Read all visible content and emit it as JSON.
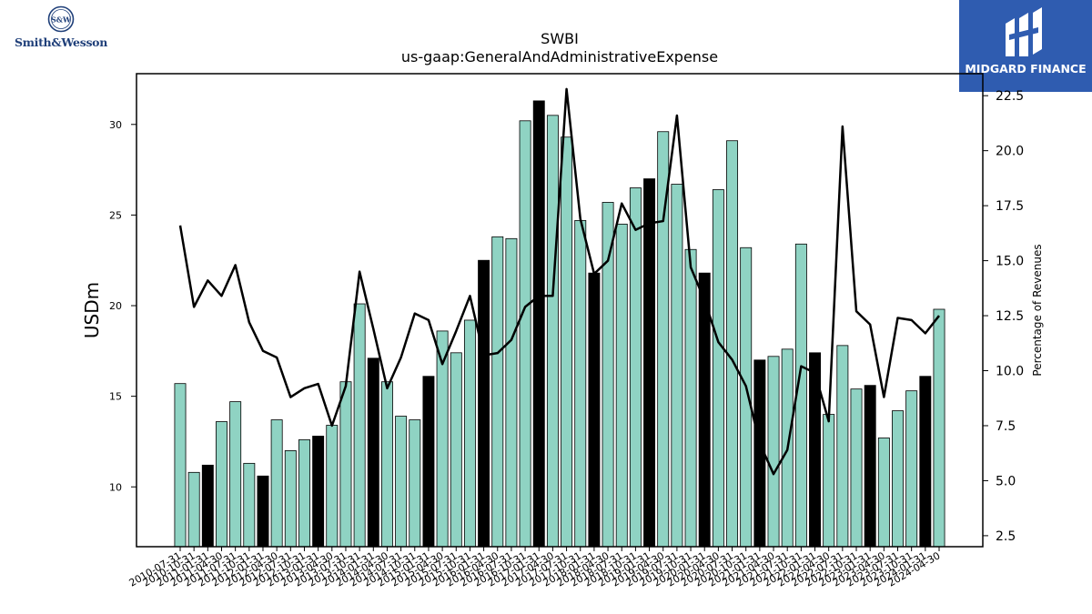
{
  "branding": {
    "company_logo_text": "Smith&Wesson",
    "company_logo_mark": "S&W",
    "publisher_logo_text": "MIDGARD FINANCE"
  },
  "icons": {
    "company_logo": "smith-wesson-seal-icon",
    "publisher_logo": "midgard-finance-mark-icon"
  },
  "colors": {
    "bar_default": "#8fd3c3",
    "bar_highlight": "#000000",
    "line": "#000000",
    "publisher_bg": "#2f5cb0"
  },
  "chart_data": {
    "type": "bar",
    "title": "SWBI",
    "subtitle": "us-gaap:GeneralAndAdministrativeExpense",
    "ylabel": "USDm",
    "y2label": "Percentage of Revenues",
    "ylim": [
      6.7,
      32.8
    ],
    "y2lim": [
      2.0,
      23.5
    ],
    "yticks": [
      10,
      15,
      20,
      25,
      30
    ],
    "y2ticks": [
      "2.5",
      "5.0",
      "7.5",
      "10.0",
      "12.5",
      "15.0",
      "17.5",
      "20.0",
      "22.5"
    ],
    "categories": [
      "2010-07-31",
      "2010-10-31",
      "2011-01-31",
      "2011-04-30",
      "2011-07-31",
      "2011-10-31",
      "2012-01-31",
      "2012-04-30",
      "2012-07-31",
      "2012-10-31",
      "2013-01-31",
      "2013-04-30",
      "2013-07-31",
      "2013-10-31",
      "2014-01-31",
      "2014-04-30",
      "2014-07-31",
      "2014-10-31",
      "2015-01-31",
      "2015-04-30",
      "2015-07-31",
      "2015-10-31",
      "2016-01-31",
      "2016-04-30",
      "2016-07-31",
      "2016-10-31",
      "2017-01-31",
      "2017-04-30",
      "2017-07-31",
      "2017-10-31",
      "2018-01-31",
      "2018-04-30",
      "2018-07-31",
      "2018-10-31",
      "2019-01-31",
      "2019-04-30",
      "2019-07-31",
      "2019-10-31",
      "2020-01-31",
      "2020-04-30",
      "2020-07-31",
      "2020-10-31",
      "2021-01-31",
      "2021-04-30",
      "2021-07-31",
      "2021-10-31",
      "2022-01-31",
      "2022-04-30",
      "2022-07-31",
      "2022-10-31",
      "2023-01-31",
      "2023-04-30",
      "2023-07-31",
      "2023-10-31",
      "2024-01-31",
      "2024-04-30"
    ],
    "series": [
      {
        "type": "bar",
        "values": [
          15.7,
          10.8,
          11.2,
          13.6,
          14.7,
          11.3,
          10.6,
          13.7,
          12.0,
          12.6,
          12.8,
          13.4,
          15.8,
          20.1,
          17.1,
          15.8,
          13.9,
          13.7,
          16.1,
          18.6,
          17.4,
          19.2,
          22.5,
          23.8,
          23.7,
          30.2,
          31.3,
          30.5,
          29.3,
          24.7,
          21.8,
          25.7,
          24.5,
          26.5,
          27.0,
          29.6,
          26.7,
          23.1,
          21.8,
          26.4,
          29.1,
          23.2,
          17.0,
          17.2,
          17.6,
          23.4,
          17.4,
          14.0,
          17.8,
          15.4,
          15.6,
          12.7,
          14.2,
          15.3,
          16.1,
          19.8
        ],
        "highlight": [
          false,
          false,
          true,
          false,
          false,
          false,
          true,
          false,
          false,
          false,
          true,
          false,
          false,
          false,
          true,
          false,
          false,
          false,
          true,
          false,
          false,
          false,
          true,
          false,
          false,
          false,
          true,
          false,
          false,
          false,
          true,
          false,
          false,
          false,
          true,
          false,
          false,
          false,
          true,
          false,
          false,
          false,
          true,
          false,
          false,
          false,
          true,
          false,
          false,
          false,
          true,
          false,
          false,
          false,
          true,
          false
        ]
      },
      {
        "type": "line",
        "axis": "right",
        "values": [
          16.6,
          12.9,
          14.1,
          13.4,
          14.8,
          12.2,
          10.9,
          10.6,
          8.8,
          9.2,
          9.4,
          7.5,
          9.3,
          14.5,
          11.9,
          9.2,
          10.6,
          12.6,
          12.3,
          10.3,
          11.8,
          13.4,
          10.7,
          10.8,
          11.4,
          12.9,
          13.4,
          13.4,
          22.8,
          16.9,
          14.4,
          15.0,
          17.6,
          16.4,
          16.7,
          16.8,
          21.6,
          14.7,
          13.2,
          11.3,
          10.5,
          9.3,
          6.7,
          5.3,
          6.4,
          10.2,
          9.9,
          7.7,
          21.1,
          12.7,
          12.1,
          8.8,
          12.4,
          12.3,
          11.7,
          12.5
        ]
      }
    ],
    "grid": false,
    "legend": "none"
  }
}
